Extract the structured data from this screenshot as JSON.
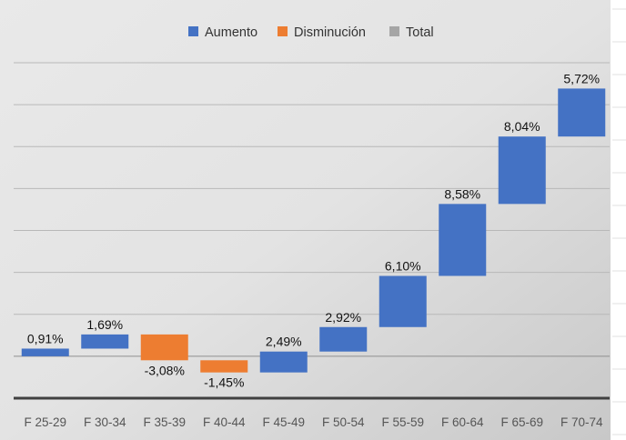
{
  "chart_data": {
    "type": "waterfall",
    "title": "",
    "xlabel": "",
    "ylabel": "",
    "categories": [
      "F 25-29",
      "F 30-34",
      "F 35-39",
      "F 40-44",
      "F 45-49",
      "F 50-54",
      "F 55-59",
      "F 60-64",
      "F 65-69",
      "F 70-74"
    ],
    "values": [
      0.91,
      1.69,
      -3.08,
      -1.45,
      2.49,
      2.92,
      6.1,
      8.58,
      8.04,
      5.72
    ],
    "labels": [
      "0,91%",
      "1,69%",
      "-3,08%",
      "-1,45%",
      "2,49%",
      "2,92%",
      "6,10%",
      "8,58%",
      "8,04%",
      "5,72%"
    ],
    "ylim": [
      -5,
      35
    ],
    "ytick_step": 5,
    "grid": true,
    "legend_position": "top",
    "legend": [
      {
        "name": "Aumento",
        "color": "#4472c4"
      },
      {
        "name": "Disminución",
        "color": "#ed7d31"
      },
      {
        "name": "Total",
        "color": "#a5a5a5"
      }
    ]
  }
}
